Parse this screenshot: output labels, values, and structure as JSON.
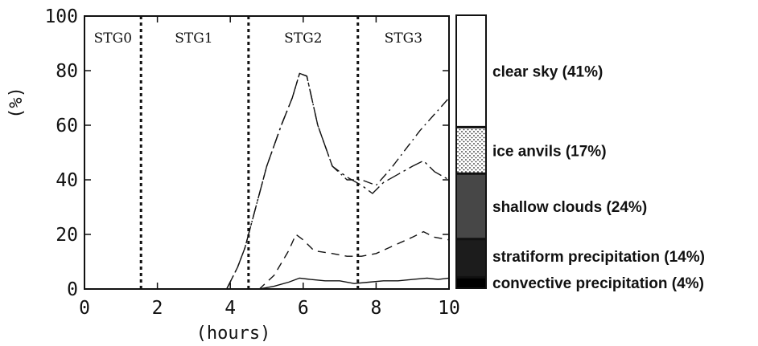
{
  "chart_data": {
    "type": "line",
    "xlabel": "(hours)",
    "ylabel": "(%)",
    "xlim": [
      0,
      10
    ],
    "ylim": [
      0,
      100
    ],
    "x_ticks": [
      "0",
      "2",
      "4",
      "6",
      "8",
      "10"
    ],
    "y_ticks": [
      "0",
      "20",
      "40",
      "60",
      "80",
      "100"
    ],
    "stage_boundaries": [
      1.55,
      4.5,
      7.5
    ],
    "stages": [
      {
        "label": "STG0",
        "x": 0.78
      },
      {
        "label": "STG1",
        "x": 3.0
      },
      {
        "label": "STG2",
        "x": 6.0
      },
      {
        "label": "STG3",
        "x": 8.75
      }
    ],
    "series": [
      {
        "style": "dashdot",
        "x": [
          3.9,
          4.2,
          4.4,
          4.6,
          5.0,
          5.4,
          5.7,
          5.9,
          6.1,
          6.4,
          6.8,
          7.2,
          7.6,
          8.0,
          8.4,
          8.8,
          9.2,
          9.6,
          10.0
        ],
        "y": [
          0,
          8,
          15,
          25,
          45,
          60,
          70,
          79,
          78,
          60,
          45,
          40,
          40,
          38,
          44,
          51,
          58,
          64,
          70
        ]
      },
      {
        "style": "longdashdot",
        "x": [
          3.9,
          4.2,
          4.4,
          4.6,
          5.0,
          5.4,
          5.7,
          5.9,
          6.1,
          6.4,
          6.8,
          7.2,
          7.6,
          7.9,
          8.2,
          8.6,
          9.0,
          9.3,
          9.6,
          10.0
        ],
        "y": [
          0,
          8,
          15,
          25,
          45,
          60,
          70,
          79,
          78,
          60,
          45,
          41,
          38,
          35,
          39,
          42,
          45,
          47,
          43,
          40
        ]
      },
      {
        "style": "dashed",
        "x": [
          4.4,
          4.8,
          5.2,
          5.6,
          5.8,
          6.0,
          6.3,
          6.8,
          7.2,
          7.6,
          8.0,
          8.5,
          9.0,
          9.3,
          9.6,
          10.0
        ],
        "y": [
          0,
          0,
          5,
          14,
          20,
          18,
          14,
          13,
          12,
          12,
          13,
          16,
          19,
          21,
          19,
          18
        ]
      },
      {
        "style": "solid",
        "x": [
          4.4,
          4.8,
          5.2,
          5.6,
          5.9,
          6.2,
          6.6,
          7.0,
          7.4,
          7.8,
          8.2,
          8.6,
          9.0,
          9.4,
          9.7,
          10.0
        ],
        "y": [
          0,
          0,
          1,
          2.5,
          4,
          3.5,
          3,
          3,
          2,
          2.5,
          3,
          3,
          3.5,
          4,
          3.5,
          4
        ]
      }
    ],
    "stacked_bar": [
      {
        "label": "convective precipitation (4%)",
        "value": 4,
        "fill": "#000000"
      },
      {
        "label": "stratiform precipitation (14%)",
        "value": 14,
        "fill": "#1c1c1c"
      },
      {
        "label": "shallow clouds (24%)",
        "value": 24,
        "fill": "#474747"
      },
      {
        "label": "ice anvils (17%)",
        "value": 17,
        "fill": "dots"
      },
      {
        "label": "clear sky (41%)",
        "value": 41,
        "fill": "#ffffff"
      }
    ]
  }
}
